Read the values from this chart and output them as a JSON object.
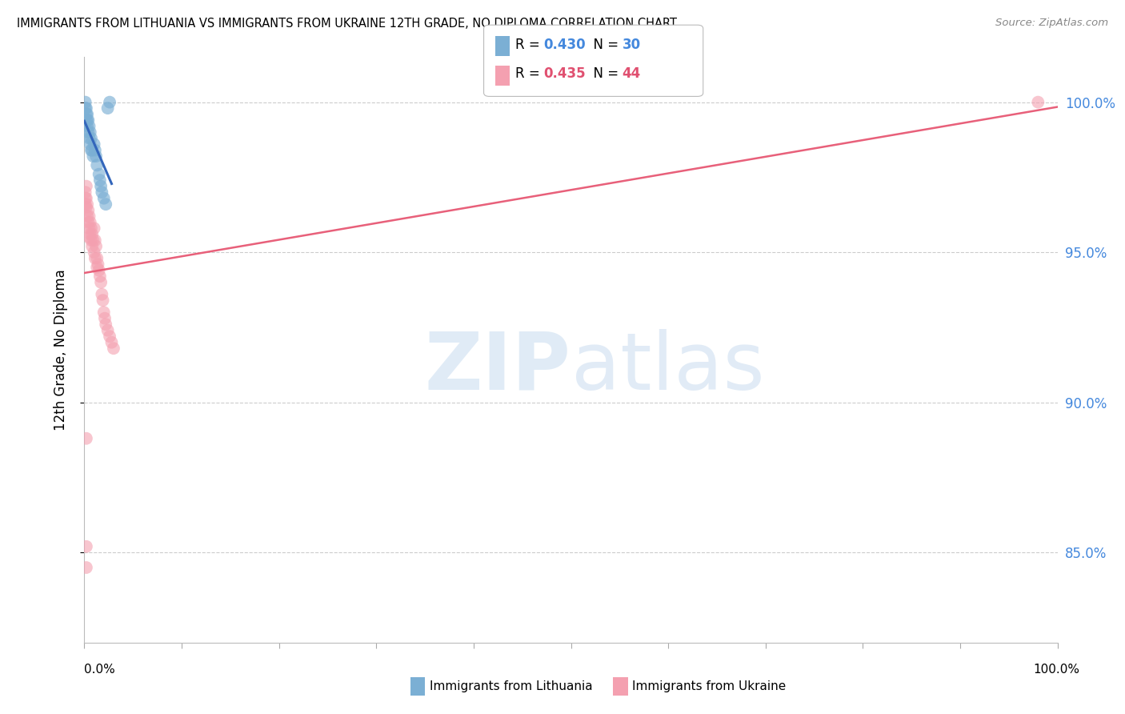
{
  "title": "IMMIGRANTS FROM LITHUANIA VS IMMIGRANTS FROM UKRAINE 12TH GRADE, NO DIPLOMA CORRELATION CHART",
  "source": "Source: ZipAtlas.com",
  "ylabel": "12th Grade, No Diploma",
  "legend_label_blue": "Immigrants from Lithuania",
  "legend_label_pink": "Immigrants from Ukraine",
  "r_blue": 0.43,
  "n_blue": 30,
  "r_pink": 0.435,
  "n_pink": 44,
  "blue_color": "#7BAFD4",
  "pink_color": "#F4A0B0",
  "blue_line_color": "#3366BB",
  "pink_line_color": "#E8607A",
  "grid_color": "#CCCCCC",
  "background_color": "#FFFFFF",
  "xlim": [
    0.0,
    1.0
  ],
  "ylim": [
    0.82,
    1.015
  ],
  "yticks": [
    0.85,
    0.9,
    0.95,
    1.0
  ],
  "ytick_labels": [
    "85.0%",
    "90.0%",
    "95.0%",
    "100.0%"
  ],
  "blue_x": [
    0.001,
    0.001,
    0.002,
    0.002,
    0.002,
    0.003,
    0.003,
    0.003,
    0.004,
    0.004,
    0.005,
    0.005,
    0.006,
    0.006,
    0.007,
    0.007,
    0.008,
    0.009,
    0.01,
    0.011,
    0.012,
    0.013,
    0.015,
    0.016,
    0.017,
    0.018,
    0.02,
    0.022,
    0.024,
    0.026
  ],
  "blue_y": [
    1.0,
    0.998,
    0.998,
    0.996,
    0.994,
    0.996,
    0.994,
    0.992,
    0.994,
    0.99,
    0.992,
    0.988,
    0.99,
    0.986,
    0.988,
    0.984,
    0.984,
    0.982,
    0.986,
    0.984,
    0.982,
    0.979,
    0.976,
    0.974,
    0.972,
    0.97,
    0.968,
    0.966,
    0.998,
    1.0
  ],
  "pink_x": [
    0.001,
    0.001,
    0.001,
    0.002,
    0.002,
    0.002,
    0.003,
    0.003,
    0.004,
    0.004,
    0.005,
    0.005,
    0.005,
    0.006,
    0.006,
    0.007,
    0.007,
    0.008,
    0.008,
    0.009,
    0.01,
    0.01,
    0.011,
    0.011,
    0.012,
    0.013,
    0.013,
    0.014,
    0.015,
    0.016,
    0.017,
    0.018,
    0.019,
    0.02,
    0.021,
    0.022,
    0.024,
    0.026,
    0.028,
    0.03,
    0.002,
    0.002,
    0.002,
    0.98
  ],
  "pink_y": [
    0.97,
    0.968,
    0.966,
    0.972,
    0.968,
    0.965,
    0.966,
    0.962,
    0.964,
    0.96,
    0.962,
    0.958,
    0.955,
    0.96,
    0.956,
    0.958,
    0.954,
    0.956,
    0.952,
    0.954,
    0.958,
    0.95,
    0.954,
    0.948,
    0.952,
    0.948,
    0.945,
    0.946,
    0.944,
    0.942,
    0.94,
    0.936,
    0.934,
    0.93,
    0.928,
    0.926,
    0.924,
    0.922,
    0.92,
    0.918,
    0.888,
    0.852,
    0.845,
    1.0
  ],
  "blue_trend_x": [
    0.0,
    0.027
  ],
  "pink_trend_x": [
    0.0,
    1.0
  ],
  "watermark_zip": "ZIP",
  "watermark_atlas": "atlas"
}
